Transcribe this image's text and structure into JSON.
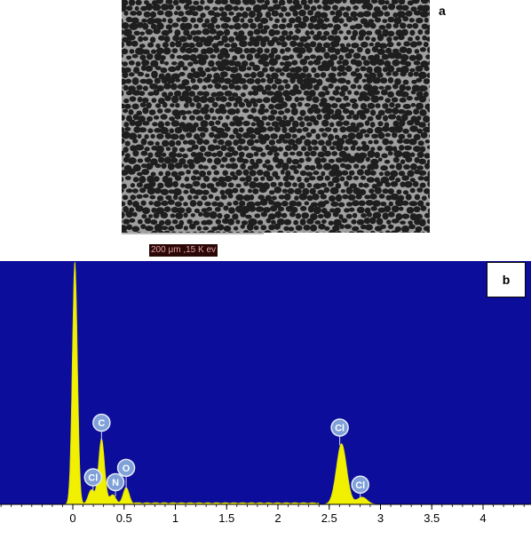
{
  "panel_a": {
    "label": "a",
    "scale_bar_text": "200 μm  ,15 K ev"
  },
  "panel_b": {
    "label": "b"
  },
  "colors": {
    "plot_background": "#0d0d9b",
    "spectrum_fill": "#f0f000",
    "peak_marker": "#7fa0d8",
    "micrograph_grains": "#1e1e1e",
    "micrograph_matrix": "#a0a0a0"
  },
  "chart_data": {
    "type": "area",
    "xlim": [
      -0.7,
      4.5
    ],
    "xticks": [
      "0",
      "0.5",
      "1",
      "1.5",
      "2",
      "2.5",
      "3",
      "3.5",
      "4"
    ],
    "xtick_values": [
      0,
      0.5,
      1,
      1.5,
      2,
      2.5,
      3,
      3.5,
      4
    ],
    "peaks": [
      {
        "x": 0.02,
        "height": 1.0,
        "width": 0.025,
        "label": ""
      },
      {
        "x": 0.28,
        "height": 0.27,
        "width": 0.03,
        "label": "C"
      },
      {
        "x": 0.18,
        "height": 0.06,
        "width": 0.03,
        "label": "Cl"
      },
      {
        "x": 0.39,
        "height": 0.04,
        "width": 0.03,
        "label": "N"
      },
      {
        "x": 0.52,
        "height": 0.07,
        "width": 0.03,
        "label": "O"
      },
      {
        "x": 2.62,
        "height": 0.25,
        "width": 0.05,
        "label": "Cl"
      },
      {
        "x": 2.82,
        "height": 0.03,
        "width": 0.05,
        "label": "Cl"
      }
    ],
    "ylim": [
      0,
      1.0
    ]
  }
}
